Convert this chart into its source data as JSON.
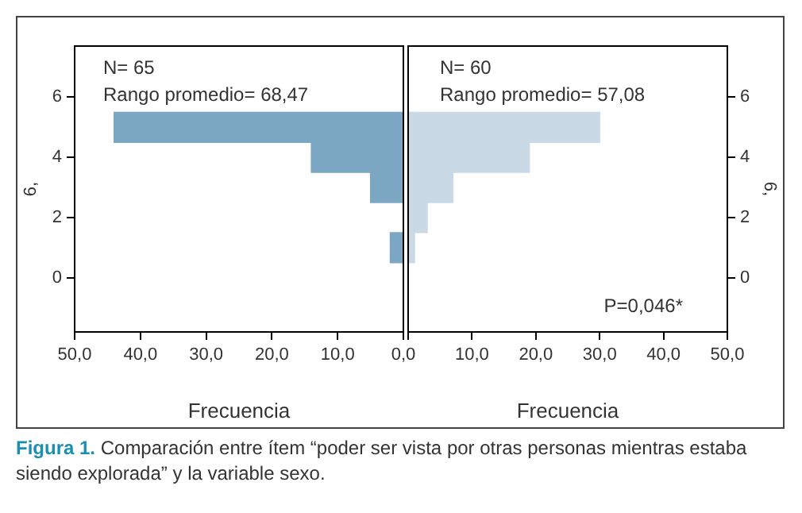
{
  "chart_data": [
    {
      "type": "histogram",
      "orientation": "horizontal",
      "bins": [
        0.5,
        1.5,
        2.5,
        3.5,
        4.5,
        5.5
      ],
      "values": [
        2,
        0,
        5,
        14,
        44
      ],
      "color": "#7ba7c2",
      "xlim": [
        50,
        0
      ],
      "xticks": [
        {
          "value": 50,
          "label": "50,0"
        },
        {
          "value": 40,
          "label": "40,0"
        },
        {
          "value": 30,
          "label": "30,0"
        },
        {
          "value": 20,
          "label": "20,0"
        },
        {
          "value": 10,
          "label": "10,0"
        },
        {
          "value": 0,
          "label": "0,0"
        }
      ],
      "ylim": [
        -1.8,
        7.7
      ],
      "yticks": [
        0,
        2,
        4,
        6
      ],
      "xlabel": "Frecuencia",
      "ylabel": "6,",
      "annotations": [
        "N= 65",
        "Rango promedio= 68,47"
      ]
    },
    {
      "type": "histogram",
      "orientation": "horizontal",
      "bins": [
        0.5,
        1.5,
        2.5,
        3.5,
        4.5,
        5.5
      ],
      "values": [
        1,
        3,
        7,
        19,
        30
      ],
      "color": "#c9d9e6",
      "xlim": [
        0,
        50
      ],
      "xticks": [
        {
          "value": 0,
          "label": null
        },
        {
          "value": 10,
          "label": "10,0"
        },
        {
          "value": 20,
          "label": "20,0"
        },
        {
          "value": 30,
          "label": "30,0"
        },
        {
          "value": 40,
          "label": "40,0"
        },
        {
          "value": 50,
          "label": "50,0"
        }
      ],
      "ylim": [
        -1.8,
        7.7
      ],
      "yticks": [
        0,
        2,
        4,
        6
      ],
      "xlabel": "Frecuencia",
      "ylabel": "6,",
      "annotations": [
        "N= 60",
        "Rango promedio= 57,08",
        "P=0,046*",
        "Figura 1. Comparación entre ítem “poder ser vista por otras personas mientras estaba siendo explorada” y la variable sexo."
      ]
    }
  ]
}
